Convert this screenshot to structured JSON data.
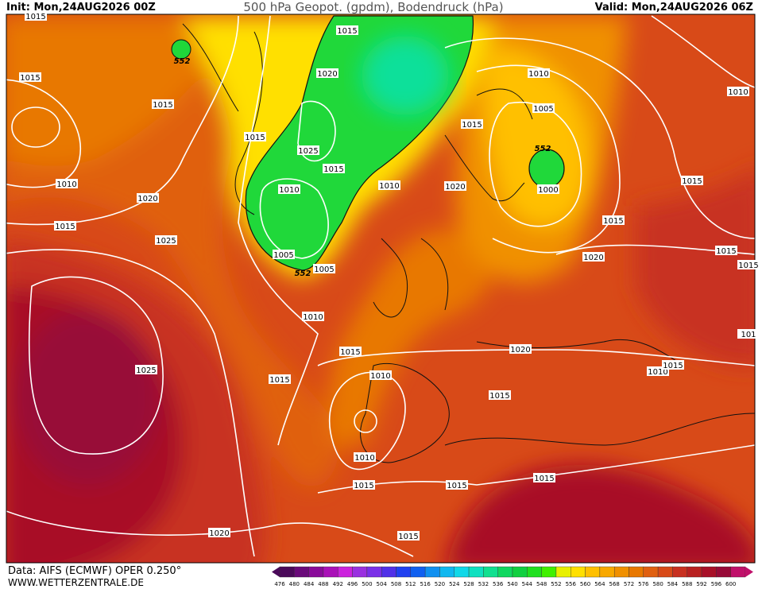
{
  "header": {
    "init": "Init: Mon,24AUG2026 00Z",
    "title": "500 hPa Geopot. (gpdm), Bodendruck (hPa)",
    "valid": "Valid: Mon,24AUG2026 06Z"
  },
  "footer": {
    "source": "Data: AIFS (ECMWF) OPER 0.250°",
    "site": "WWW.WETTERZENTRALE.DE"
  },
  "isobar_labels": [
    "1015",
    "1015",
    "1015",
    "1020",
    "1015",
    "1015",
    "1025",
    "1015",
    "1010",
    "1010",
    "1010",
    "1020",
    "1015",
    "1025",
    "1005",
    "1005",
    "1010",
    "1010",
    "1005",
    "1015",
    "1000",
    "1020",
    "1015",
    "1015",
    "1020",
    "1015",
    "1015",
    "1010",
    "1015",
    "1020",
    "101",
    "1025",
    "1015",
    "1010",
    "1010",
    "1015",
    "1015",
    "1010",
    "1015",
    "1015",
    "1015",
    "1020",
    "1015"
  ],
  "geopotential_labels": [
    "552",
    "552",
    "552"
  ],
  "colorbar": {
    "levels": [
      476,
      480,
      484,
      488,
      492,
      496,
      500,
      504,
      508,
      512,
      516,
      520,
      524,
      528,
      532,
      536,
      540,
      544,
      548,
      552,
      556,
      560,
      564,
      568,
      572,
      576,
      580,
      584,
      588,
      592,
      596,
      600
    ],
    "colors": [
      "#4b0a5a",
      "#6a0a7a",
      "#8a0a9a",
      "#aa10b8",
      "#cc22dd",
      "#9a30e0",
      "#7a30e8",
      "#5030e8",
      "#2040f0",
      "#1060f0",
      "#1090f0",
      "#10b8f0",
      "#10d8e8",
      "#10e0c0",
      "#10e090",
      "#10d860",
      "#10d040",
      "#20e020",
      "#40f000",
      "#e8f000",
      "#ffe000",
      "#ffc000",
      "#f8a800",
      "#f09000",
      "#e87800",
      "#e06010",
      "#d84a18",
      "#c83020",
      "#b82020",
      "#a81028",
      "#980a38",
      "#c0106a"
    ]
  }
}
